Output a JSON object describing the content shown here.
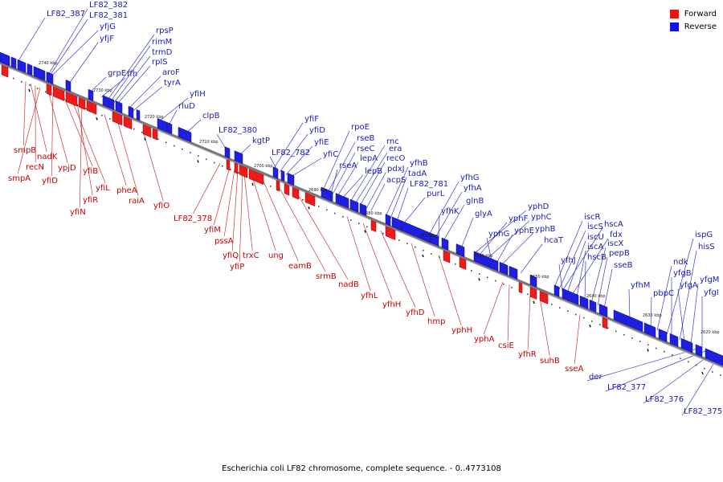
{
  "legend": {
    "forward": {
      "label": "Forward",
      "color": "#ee1111"
    },
    "reverse": {
      "label": "Reverse",
      "color": "#1111ee"
    }
  },
  "caption": "Escherichia coli LF82 chromosome, complete sequence. - 0..4773108",
  "ticks": [
    "2740 kbp",
    "2730 kbp",
    "2720 kbp",
    "2710 kbp",
    "2700 kbp",
    "2690 kbp",
    "2680 kbp",
    "2670 kbp",
    "2660 kbp",
    "2650 kbp",
    "2640 kbp",
    "2630 kbp",
    "2620 kbp"
  ],
  "reverse_labels": [
    "LF82_387",
    "LF82_382",
    "LF82_381",
    "yfjG",
    "yfjF",
    "rpsP",
    "rimM",
    "trmD",
    "rplS",
    "grpE",
    "ffh",
    "aroF",
    "tyrA",
    "yfiH",
    "rluD",
    "clpB",
    "LF82_380",
    "kgtP",
    "yfiF",
    "yfiD",
    "yfiE",
    "LF82_782",
    "yfiC",
    "rpoE",
    "rseB",
    "rseC",
    "rseA",
    "lepA",
    "lepB",
    "rnc",
    "era",
    "recO",
    "pdxJ",
    "acpS",
    "yfhB",
    "tadA",
    "LF82_781",
    "purL",
    "yfhG",
    "yfhA",
    "yfhK",
    "glnB",
    "glyA",
    "yphD",
    "yphF",
    "yphC",
    "yphG",
    "yphE",
    "yphB",
    "hcaT",
    "iscR",
    "iscS",
    "hscA",
    "iscU",
    "fdx",
    "iscA",
    "yfhJ",
    "hscB",
    "iscX",
    "pepB",
    "sseB",
    "yfhM",
    "ndk",
    "ispG",
    "yfgB",
    "hisS",
    "pbpC",
    "yfgA",
    "yfgM",
    "yfgI",
    "der",
    "LF82_377",
    "LF82_376",
    "LF82_375"
  ],
  "forward_labels": [
    "smpB",
    "nadK",
    "recN",
    "smpA",
    "ypjD",
    "yfiD",
    "yfiB",
    "yfiL",
    "yfiR",
    "yfiN",
    "pheA",
    "raiA",
    "yfiO",
    "LF82_378",
    "yfiM",
    "pssA",
    "yfiQ",
    "trxC",
    "yfiP",
    "ung",
    "eamB",
    "srmB",
    "nadB",
    "yfhL",
    "yfhH",
    "yfhD",
    "hmp",
    "yphH",
    "yphA",
    "csiE",
    "yfhR",
    "suhB",
    "sseA"
  ]
}
